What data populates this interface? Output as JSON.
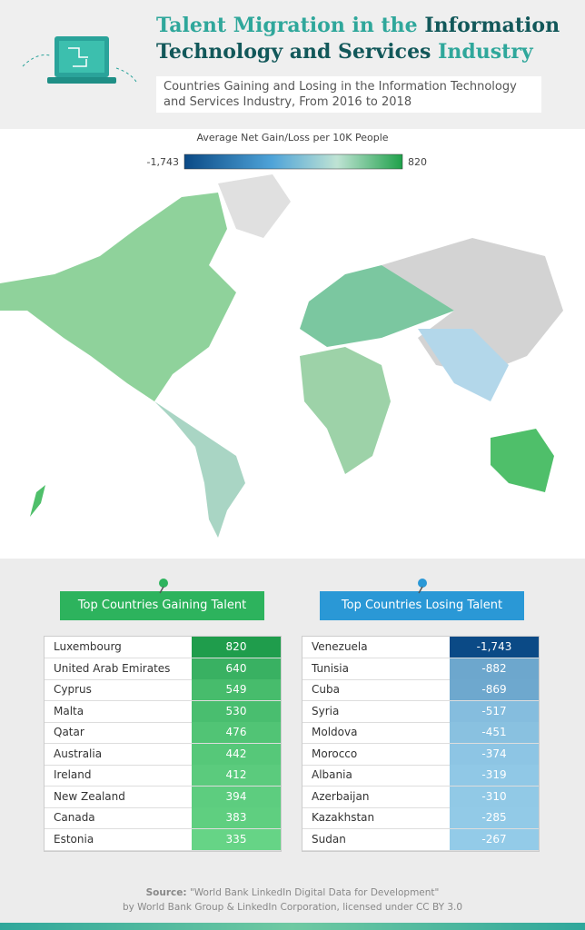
{
  "header": {
    "title_light": "Talent Migration in the",
    "title_dark": "Information Technology and Services",
    "title_end": "Industry",
    "subtitle": "Countries Gaining and Losing in the Information Technology and Services Industry, From 2016 to 2018"
  },
  "legend": {
    "title": "Average Net Gain/Loss per 10K People",
    "min": {
      "value": -1743,
      "label": "-1,743"
    },
    "max": 820
  },
  "gaining": {
    "title": "Top Countries Gaining Talent",
    "rows": [
      [
        "Luxembourg",
        820
      ],
      [
        "United Arab Emirates",
        640
      ],
      [
        "Cyprus",
        549
      ],
      [
        "Malta",
        530
      ],
      [
        "Qatar",
        476
      ],
      [
        "Australia",
        442
      ],
      [
        "Ireland",
        412
      ],
      [
        "New Zealand",
        394
      ],
      [
        "Canada",
        383
      ],
      [
        "Estonia",
        335
      ]
    ]
  },
  "losing": {
    "title": "Top Countries Losing Talent",
    "rows": [
      [
        "Venezuela",
        {
          "value": -1743,
          "label": "-1,743"
        }
      ],
      [
        "Tunisia",
        -882
      ],
      [
        "Cuba",
        -869
      ],
      [
        "Syria",
        -517
      ],
      [
        "Moldova",
        -451
      ],
      [
        "Morocco",
        -374
      ],
      [
        "Albania",
        -319
      ],
      [
        "Azerbaijan",
        -310
      ],
      [
        "Kazakhstan",
        -285
      ],
      [
        "Sudan",
        -267
      ]
    ]
  },
  "source": {
    "label": "Source:",
    "title": "\"World Bank LinkedIn Digital Data for Development\"",
    "credit": "by World Bank Group & LinkedIn Corporation, licensed under CC BY 3.0"
  }
}
